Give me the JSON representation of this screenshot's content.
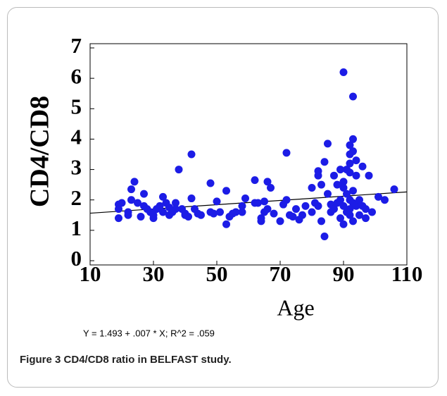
{
  "chart_data": {
    "type": "scatter",
    "xlabel": "Age",
    "ylabel": "CD4/CD8",
    "annotation": "Y = 1.493 + .007 * X; R^2 = .059",
    "caption_label": "Figure 3",
    "caption_text": "CD4/CD8 ratio in BELFAST study.",
    "xlim": [
      10,
      110
    ],
    "xticks": [
      10,
      30,
      50,
      70,
      90,
      110
    ],
    "ylim": [
      0,
      7
    ],
    "yticks": [
      0,
      1,
      2,
      3,
      4,
      5,
      6,
      7
    ],
    "color": "#1c1ce6",
    "fit_line": {
      "x": [
        10,
        110
      ],
      "y": [
        1.563,
        2.263
      ]
    },
    "x": [
      19,
      19,
      19,
      20,
      22,
      22,
      23,
      23,
      24,
      25,
      26,
      27,
      27,
      28,
      29,
      30,
      30,
      31,
      32,
      33,
      33,
      34,
      35,
      35,
      36,
      37,
      37,
      38,
      39,
      40,
      40,
      41,
      42,
      42,
      43,
      44,
      45,
      48,
      48,
      49,
      50,
      51,
      53,
      53,
      54,
      55,
      56,
      58,
      58,
      59,
      62,
      62,
      63,
      64,
      64,
      65,
      65,
      66,
      66,
      67,
      68,
      70,
      71,
      72,
      72,
      73,
      74,
      75,
      76,
      77,
      78,
      80,
      80,
      81,
      82,
      82,
      82,
      83,
      83,
      84,
      84,
      85,
      85,
      86,
      86,
      87,
      87,
      88,
      88,
      89,
      89,
      89,
      90,
      90,
      90,
      90,
      90,
      91,
      91,
      91,
      92,
      92,
      92,
      92,
      92,
      92,
      92,
      93,
      93,
      93,
      93,
      93,
      93,
      94,
      94,
      94,
      95,
      95,
      96,
      96,
      97,
      97,
      98,
      99,
      101,
      103,
      106
    ],
    "y": [
      1.85,
      1.7,
      1.4,
      1.9,
      1.5,
      1.6,
      2.0,
      2.35,
      2.6,
      1.9,
      1.45,
      1.8,
      2.2,
      1.7,
      1.6,
      1.4,
      1.5,
      1.7,
      1.8,
      2.1,
      1.6,
      1.9,
      1.75,
      1.5,
      1.6,
      1.9,
      1.7,
      3.0,
      1.7,
      1.55,
      1.5,
      1.45,
      2.05,
      3.5,
      1.7,
      1.55,
      1.5,
      1.6,
      2.55,
      1.55,
      1.95,
      1.6,
      2.3,
      1.2,
      1.45,
      1.55,
      1.6,
      1.6,
      1.8,
      2.05,
      2.65,
      1.9,
      1.9,
      1.3,
      1.4,
      1.6,
      1.95,
      2.6,
      1.7,
      2.4,
      1.55,
      1.3,
      1.85,
      3.55,
      2.0,
      1.5,
      1.45,
      1.7,
      1.35,
      1.5,
      1.8,
      1.6,
      2.4,
      1.9,
      1.8,
      2.8,
      2.95,
      2.5,
      1.3,
      0.8,
      3.25,
      2.2,
      3.85,
      1.6,
      1.85,
      2.8,
      1.7,
      1.9,
      2.5,
      3.0,
      2.0,
      1.4,
      6.2,
      1.2,
      2.6,
      1.8,
      2.4,
      3.0,
      2.2,
      1.6,
      3.8,
      3.5,
      3.2,
      2.9,
      2.0,
      1.7,
      1.5,
      5.4,
      4.0,
      3.6,
      2.3,
      1.9,
      1.3,
      3.3,
      2.8,
      1.8,
      2.0,
      1.5,
      3.1,
      1.8,
      1.4,
      1.7,
      2.8,
      1.6,
      2.1,
      2.0,
      2.35
    ]
  }
}
